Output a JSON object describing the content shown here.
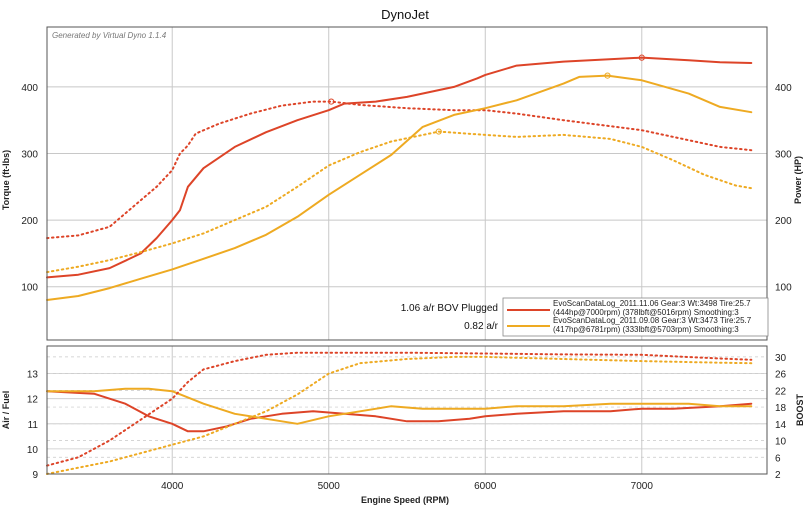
{
  "colors": {
    "red": "#dd4428",
    "orange": "#eeaa22",
    "grid": "#c8c8c8",
    "frame": "#555555"
  },
  "chart_data": [
    {
      "type": "line",
      "title": "DynoJet",
      "generator": "Generated by Virtual Dyno 1.1.4",
      "xlabel": "Engine Speed (RPM)",
      "ylabel_left": "Torque (ft-lbs)",
      "ylabel_right": "Power (HP)",
      "xlim": [
        3200,
        7800
      ],
      "ylim": [
        20,
        490
      ],
      "x_ticks": [
        4000,
        5000,
        6000,
        7000
      ],
      "y_ticks": [
        100,
        200,
        300,
        400
      ],
      "annotations": [
        "1.06 a/r BOV Plugged",
        "0.82 a/r"
      ],
      "legend": [
        {
          "line1": "EvoScanDataLog_2011.11.06 Gear:3 Wt:3498 Tire:25.7",
          "line2": "(444hp@7000rpm) (378lbft@5016rpm) Smoothing:3"
        },
        {
          "line1": "EvoScanDataLog_2011.09.08 Gear:3 Wt:3473 Tire:25.7",
          "line2": "(417hp@6781rpm) (333lbft@5703rpm) Smoothing:3"
        }
      ],
      "series": [
        {
          "name": "2011.11.06 Power (HP)",
          "color": "red",
          "style": "solid",
          "x": [
            3200,
            3400,
            3600,
            3800,
            3900,
            4000,
            4050,
            4100,
            4200,
            4400,
            4600,
            4800,
            5000,
            5100,
            5300,
            5500,
            5800,
            5950,
            6000,
            6200,
            6500,
            7000,
            7300,
            7500,
            7700
          ],
          "y": [
            114,
            118,
            128,
            150,
            173,
            200,
            215,
            250,
            278,
            310,
            332,
            350,
            365,
            375,
            378,
            385,
            400,
            413,
            418,
            432,
            438,
            444,
            440,
            437,
            436
          ]
        },
        {
          "name": "2011.11.06 Torque (ft-lbs)",
          "color": "red",
          "style": "dotted",
          "x": [
            3200,
            3400,
            3600,
            3800,
            3900,
            4000,
            4050,
            4100,
            4150,
            4300,
            4500,
            4700,
            4900,
            5016,
            5200,
            5500,
            5800,
            6000,
            6200,
            6500,
            7000,
            7300,
            7500,
            7700
          ],
          "y": [
            173,
            177,
            190,
            230,
            250,
            275,
            300,
            312,
            330,
            345,
            360,
            372,
            378,
            378,
            373,
            368,
            365,
            365,
            360,
            350,
            335,
            320,
            310,
            305
          ]
        },
        {
          "name": "2011.09.08 Power (HP)",
          "color": "orange",
          "style": "solid",
          "x": [
            3200,
            3400,
            3600,
            3800,
            4000,
            4200,
            4400,
            4600,
            4800,
            5000,
            5200,
            5400,
            5600,
            5800,
            6000,
            6200,
            6500,
            6600,
            6781,
            7000,
            7300,
            7500,
            7700
          ],
          "y": [
            80,
            86,
            98,
            112,
            126,
            142,
            158,
            178,
            205,
            238,
            268,
            298,
            340,
            358,
            368,
            380,
            405,
            415,
            417,
            410,
            390,
            370,
            362
          ]
        },
        {
          "name": "2011.09.08 Torque (ft-lbs)",
          "color": "orange",
          "style": "dotted",
          "x": [
            3200,
            3400,
            3600,
            3800,
            4000,
            4200,
            4400,
            4600,
            4800,
            5000,
            5200,
            5400,
            5703,
            6000,
            6200,
            6500,
            6800,
            7000,
            7200,
            7400,
            7600,
            7700
          ],
          "y": [
            122,
            130,
            140,
            152,
            165,
            180,
            200,
            220,
            250,
            282,
            302,
            318,
            333,
            328,
            325,
            328,
            322,
            310,
            290,
            268,
            252,
            248
          ]
        }
      ]
    },
    {
      "type": "line",
      "xlabel": "Engine Speed (RPM)",
      "ylabel_left": "Air / Fuel",
      "ylabel_right": "BOOST",
      "xlim": [
        3200,
        7800
      ],
      "ylim": [
        9,
        14.1
      ],
      "x_ticks": [
        4000,
        5000,
        6000,
        7000
      ],
      "y_ticks": [
        9,
        10,
        11,
        12,
        13
      ],
      "ylim_right": [
        2,
        32.6
      ],
      "y_ticks_right": [
        2,
        6,
        10,
        14,
        18,
        22,
        26,
        30
      ],
      "series": [
        {
          "name": "2011.11.06 Air/Fuel",
          "color": "red",
          "style": "solid",
          "axis": "left",
          "x": [
            3200,
            3500,
            3700,
            3850,
            4000,
            4100,
            4200,
            4350,
            4500,
            4700,
            4900,
            5100,
            5300,
            5500,
            5700,
            5900,
            6000,
            6200,
            6500,
            6800,
            7000,
            7200,
            7500,
            7700
          ],
          "y": [
            12.3,
            12.2,
            11.8,
            11.3,
            11.0,
            10.7,
            10.7,
            10.9,
            11.2,
            11.4,
            11.5,
            11.4,
            11.3,
            11.1,
            11.1,
            11.2,
            11.3,
            11.4,
            11.5,
            11.5,
            11.6,
            11.6,
            11.7,
            11.8
          ]
        },
        {
          "name": "2011.09.08 Air/Fuel",
          "color": "orange",
          "style": "solid",
          "axis": "left",
          "x": [
            3200,
            3500,
            3700,
            3850,
            4000,
            4200,
            4400,
            4600,
            4800,
            5000,
            5200,
            5400,
            5600,
            5800,
            6000,
            6200,
            6500,
            6800,
            7000,
            7300,
            7500,
            7700
          ],
          "y": [
            12.3,
            12.3,
            12.4,
            12.4,
            12.3,
            11.8,
            11.4,
            11.2,
            11.0,
            11.3,
            11.5,
            11.7,
            11.6,
            11.6,
            11.6,
            11.7,
            11.7,
            11.8,
            11.8,
            11.8,
            11.7,
            11.7
          ]
        },
        {
          "name": "2011.11.06 Boost",
          "color": "red",
          "style": "dotted",
          "axis": "right",
          "x": [
            3200,
            3400,
            3600,
            3800,
            4000,
            4100,
            4200,
            4400,
            4600,
            4800,
            5000,
            5500,
            6000,
            6500,
            7000,
            7500,
            7700
          ],
          "y": [
            4,
            6,
            10,
            15,
            20,
            24,
            27,
            29,
            30.5,
            31,
            31,
            31,
            30.8,
            30.6,
            30.5,
            29.6,
            29.3
          ]
        },
        {
          "name": "2011.09.08 Boost",
          "color": "orange",
          "style": "dotted",
          "axis": "right",
          "x": [
            3200,
            3400,
            3600,
            3800,
            4000,
            4200,
            4400,
            4600,
            4800,
            5000,
            5200,
            5500,
            5800,
            6000,
            6500,
            7000,
            7500,
            7700
          ],
          "y": [
            2,
            3.5,
            5,
            7,
            9,
            11,
            14,
            17,
            21,
            26,
            28.5,
            29.5,
            30,
            30,
            29.5,
            29,
            28.6,
            28.5
          ]
        }
      ]
    }
  ]
}
